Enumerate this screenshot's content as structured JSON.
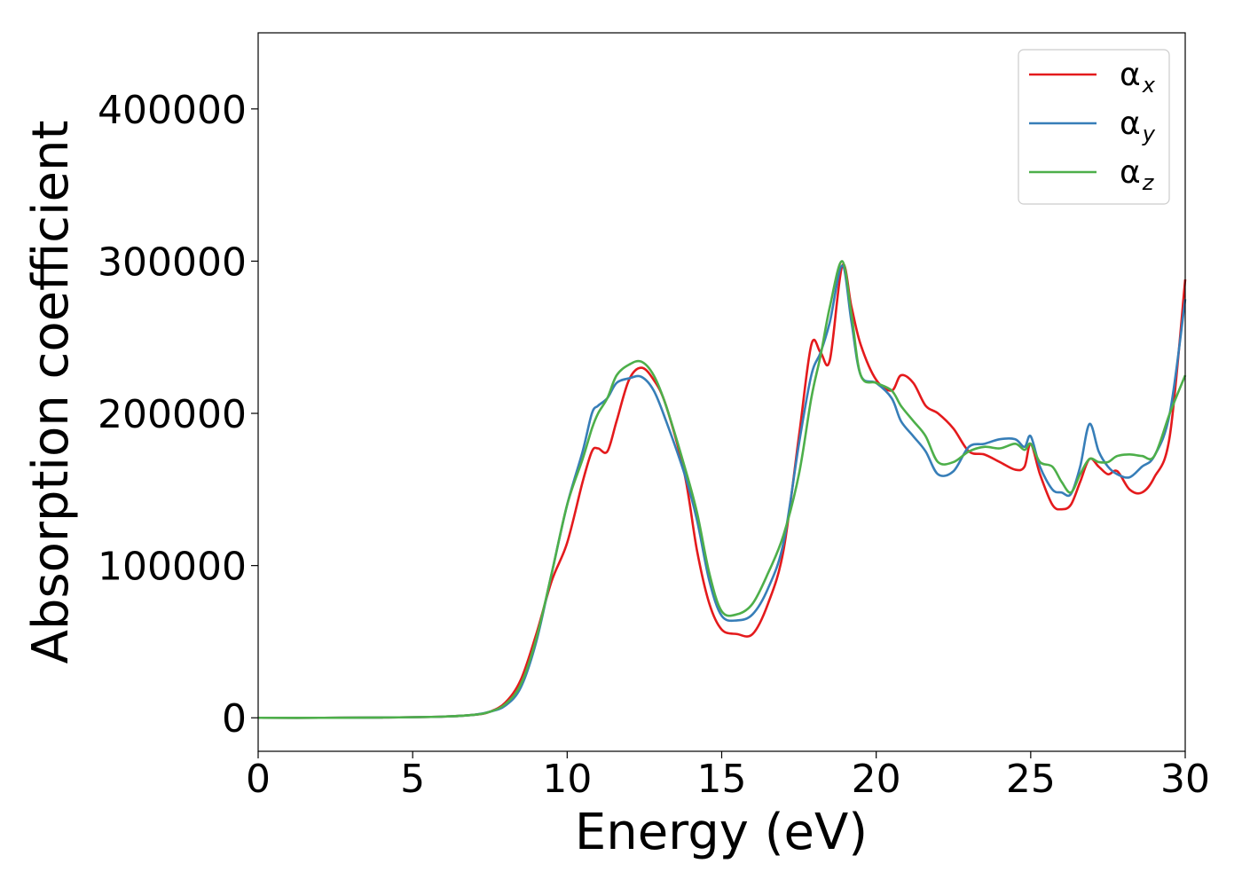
{
  "chart_data": {
    "type": "line",
    "title": "",
    "xlabel": "Energy (eV)",
    "ylabel": "Absorption coefficient",
    "xlim": [
      0,
      30
    ],
    "ylim": [
      -22000,
      450000
    ],
    "xticks": [
      0,
      5,
      10,
      15,
      20,
      25,
      30
    ],
    "xtick_labels": [
      "0",
      "5",
      "10",
      "15",
      "20",
      "25",
      "30"
    ],
    "yticks": [
      0,
      100000,
      200000,
      300000,
      400000
    ],
    "ytick_labels": [
      "0",
      "100000",
      "200000",
      "300000",
      "400000"
    ],
    "grid": false,
    "legend_position": "top-right",
    "series": [
      {
        "name": "αx",
        "symbol": "α",
        "subscript": "x",
        "color": "#e41a1c",
        "x": [
          0,
          2,
          4,
          6,
          7,
          7.5,
          8,
          8.5,
          9,
          9.5,
          10,
          10.5,
          10.8,
          11,
          11.3,
          11.6,
          12,
          12.4,
          12.8,
          13.2,
          13.8,
          14.2,
          14.6,
          15,
          15.5,
          16,
          16.5,
          17,
          17.5,
          17.9,
          18.2,
          18.5,
          18.9,
          19.2,
          19.5,
          20,
          20.5,
          20.8,
          21.2,
          21.6,
          22,
          22.5,
          23,
          23.5,
          24,
          24.5,
          24.8,
          25,
          25.3,
          25.7,
          26,
          26.3,
          26.6,
          26.9,
          27.2,
          27.5,
          27.8,
          28.2,
          28.6,
          29,
          29.5,
          30
        ],
        "y": [
          0,
          0,
          200,
          800,
          2000,
          4000,
          10000,
          25000,
          55000,
          90000,
          115000,
          155000,
          175000,
          177000,
          175000,
          195000,
          222000,
          230000,
          222000,
          205000,
          160000,
          110000,
          75000,
          58000,
          55000,
          55000,
          75000,
          110000,
          185000,
          245000,
          240000,
          235000,
          297000,
          270000,
          245000,
          222000,
          215000,
          225000,
          220000,
          205000,
          200000,
          190000,
          175000,
          173000,
          168000,
          163000,
          165000,
          180000,
          160000,
          140000,
          137000,
          140000,
          155000,
          170000,
          165000,
          160000,
          162000,
          150000,
          148000,
          158000,
          185000,
          288000
        ]
      },
      {
        "name": "αy",
        "symbol": "α",
        "subscript": "y",
        "color": "#377eb8",
        "x": [
          0,
          2,
          4,
          6,
          7,
          7.5,
          8,
          8.5,
          9,
          9.5,
          10,
          10.5,
          10.8,
          11,
          11.3,
          11.6,
          12,
          12.4,
          12.8,
          13.2,
          13.8,
          14.2,
          14.6,
          15,
          15.5,
          16,
          16.5,
          17,
          17.5,
          17.9,
          18.2,
          18.5,
          18.9,
          19.2,
          19.5,
          20,
          20.5,
          20.8,
          21.2,
          21.6,
          22,
          22.5,
          23,
          23.5,
          24,
          24.5,
          24.8,
          25,
          25.3,
          25.7,
          26,
          26.3,
          26.6,
          26.9,
          27.2,
          27.5,
          27.8,
          28.2,
          28.6,
          29,
          29.5,
          30
        ],
        "y": [
          0,
          0,
          200,
          800,
          2000,
          4000,
          8000,
          20000,
          50000,
          95000,
          140000,
          175000,
          200000,
          205000,
          210000,
          220000,
          223000,
          224000,
          215000,
          195000,
          160000,
          130000,
          90000,
          67000,
          64000,
          68000,
          85000,
          115000,
          180000,
          225000,
          240000,
          260000,
          297000,
          260000,
          225000,
          220000,
          210000,
          195000,
          185000,
          175000,
          160000,
          162000,
          178000,
          180000,
          183000,
          183000,
          178000,
          185000,
          165000,
          150000,
          148000,
          147000,
          165000,
          193000,
          175000,
          165000,
          160000,
          158000,
          165000,
          172000,
          200000,
          275000
        ]
      },
      {
        "name": "αz",
        "symbol": "α",
        "subscript": "z",
        "color": "#4daf4a",
        "x": [
          0,
          2,
          4,
          6,
          7,
          7.5,
          8,
          8.5,
          9,
          9.5,
          10,
          10.5,
          10.8,
          11,
          11.3,
          11.6,
          12,
          12.4,
          12.8,
          13.2,
          13.8,
          14.2,
          14.6,
          15,
          15.5,
          16,
          16.5,
          17,
          17.5,
          17.9,
          18.2,
          18.5,
          18.9,
          19.2,
          19.5,
          20,
          20.5,
          20.8,
          21.2,
          21.6,
          22,
          22.5,
          23,
          23.5,
          24,
          24.5,
          24.8,
          25,
          25.3,
          25.7,
          26,
          26.3,
          26.6,
          26.9,
          27.2,
          27.5,
          27.8,
          28.2,
          28.6,
          29,
          29.5,
          30
        ],
        "y": [
          0,
          0,
          200,
          800,
          2000,
          4000,
          9000,
          22000,
          52000,
          95000,
          140000,
          170000,
          190000,
          200000,
          210000,
          225000,
          232000,
          234000,
          225000,
          205000,
          165000,
          135000,
          95000,
          70000,
          68000,
          75000,
          95000,
          120000,
          160000,
          210000,
          238000,
          270000,
          300000,
          265000,
          225000,
          220000,
          215000,
          205000,
          195000,
          185000,
          168000,
          168000,
          175000,
          178000,
          177000,
          180000,
          176000,
          180000,
          168000,
          165000,
          155000,
          148000,
          160000,
          170000,
          168000,
          168000,
          172000,
          173000,
          172000,
          172000,
          200000,
          225000
        ]
      }
    ]
  }
}
